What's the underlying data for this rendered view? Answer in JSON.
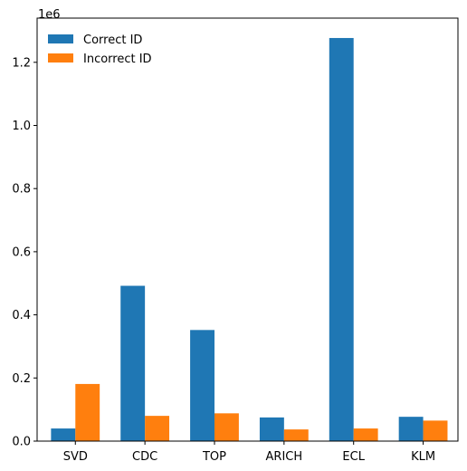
{
  "chart_data": {
    "type": "bar",
    "title": "",
    "xlabel": "",
    "ylabel": "",
    "offset_text": "1e6",
    "categories": [
      "SVD",
      "CDC",
      "TOP",
      "ARICH",
      "ECL",
      "KLM"
    ],
    "series": [
      {
        "name": "Correct ID",
        "color": "#1f77b4",
        "values": [
          40000,
          492000,
          352000,
          75000,
          1277000,
          77000
        ]
      },
      {
        "name": "Incorrect ID",
        "color": "#ff7f0e",
        "values": [
          181000,
          80000,
          88000,
          37000,
          40000,
          65000
        ]
      }
    ],
    "ylim": [
      0,
      1340000
    ],
    "y_ticks": [
      0,
      200000,
      400000,
      600000,
      800000,
      1000000,
      1200000
    ],
    "y_tick_labels": [
      "0.0",
      "0.2",
      "0.4",
      "0.6",
      "0.8",
      "1.0",
      "1.2"
    ],
    "legend_position": "top-left",
    "grid": false
  }
}
